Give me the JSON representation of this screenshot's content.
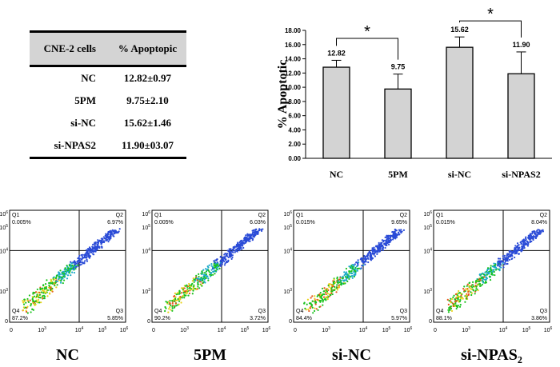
{
  "table": {
    "headers": [
      "CNE-2 cells",
      "% Apoptopic"
    ],
    "rows": [
      {
        "group": "NC",
        "value": "12.82±0.97"
      },
      {
        "group": "5PM",
        "value": "9.75±2.10"
      },
      {
        "group": "si-NC",
        "value": "15.62±1.46"
      },
      {
        "group": "si-NPAS2",
        "value": "11.90±03.07"
      }
    ]
  },
  "chart_data": {
    "type": "bar",
    "title": "",
    "xlabel": "",
    "ylabel": "% Apoptotic",
    "ylim": [
      0,
      18
    ],
    "yticks": [
      "0.00",
      "2.00",
      "4.00",
      "6.00",
      "8.00",
      "10.00",
      "12.00",
      "14.00",
      "16.00",
      "18.00"
    ],
    "categories": [
      "NC",
      "5PM",
      "si-NC",
      "si-NPAS2"
    ],
    "values": [
      12.82,
      9.75,
      15.62,
      11.9
    ],
    "errors": [
      0.97,
      2.1,
      1.46,
      3.07
    ],
    "value_labels": [
      "12.82",
      "9.75",
      "15.62",
      "11.90"
    ],
    "significance": [
      {
        "from": 0,
        "to": 1,
        "label": "*"
      },
      {
        "from": 2,
        "to": 3,
        "label": "*"
      }
    ],
    "bar_color": "#d3d3d3"
  },
  "flow_axis": {
    "x_ticks": [
      "0",
      "10",
      "10",
      "10",
      "10"
    ],
    "x_exps": [
      "",
      "3",
      "4",
      "5",
      "6"
    ],
    "y_ticks": [
      "0",
      "10",
      "10",
      "10",
      "10"
    ],
    "y_exps": [
      "",
      "3",
      "4",
      "5",
      "6"
    ]
  },
  "flow_plots": [
    {
      "sample": "NC",
      "q1": "Q1",
      "q1_pct": "0.005%",
      "q2": "Q2",
      "q2_pct": "6.97%",
      "q3": "Q3",
      "q3_pct": "5.85%",
      "q4": "Q4",
      "q4_pct": "87.2%"
    },
    {
      "sample": "5PM",
      "q1": "Q1",
      "q1_pct": "0.005%",
      "q2": "Q2",
      "q2_pct": "6.03%",
      "q3": "Q3",
      "q3_pct": "3.72%",
      "q4": "Q4",
      "q4_pct": "90.2%"
    },
    {
      "sample": "si-NC",
      "q1": "Q1",
      "q1_pct": "0.015%",
      "q2": "Q2",
      "q2_pct": "9.65%",
      "q3": "Q3",
      "q3_pct": "5.97%",
      "q4": "Q4",
      "q4_pct": "84.4%"
    },
    {
      "sample": "si-NPAS₂",
      "q1": "Q1",
      "q1_pct": "0.015%",
      "q2": "Q2",
      "q2_pct": "8.04%",
      "q3": "Q3",
      "q3_pct": "3.86%",
      "q4": "Q4",
      "q4_pct": "88.1%"
    }
  ]
}
